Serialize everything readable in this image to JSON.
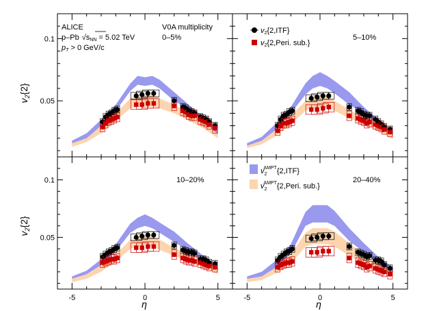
{
  "colors": {
    "itf_marker": "#000000",
    "peri_marker": "#cc0000",
    "ampt_itf_band": "#9999ee",
    "ampt_peri_band": "#fcd5b0"
  },
  "text": {
    "alice": "ALICE",
    "system_prefix": "p–Pb",
    "sqrt_s": "√s",
    "nn_sub": "NN",
    "energy": " = 5.02 TeV",
    "pt_p": "p",
    "pt_t": "T",
    "pt_rest": " > 0 GeV/c",
    "v0a": "V0A multiplicity",
    "ylabel_v": "v",
    "ylabel_sub": "2",
    "ylabel_rest": "{2}",
    "xlabel": "η"
  },
  "legends": {
    "itf_v": "v",
    "itf_sub": "2",
    "itf_rest": "{2,ITF}",
    "peri_v": "v",
    "peri_sub": "2",
    "peri_rest": "{2,Peri. sub.}",
    "ampt_itf_v": "v",
    "ampt_itf_sub": "2",
    "ampt_sup": "AMPT",
    "ampt_itf_rest": "{2,ITF}",
    "ampt_peri_v": "v",
    "ampt_peri_sub": "2",
    "ampt_peri_rest": "{2,Peri. sub.}"
  },
  "chart_data": {
    "type": "scatter",
    "title": "",
    "xlabel": "η",
    "ylabel": "v2{2}",
    "xlim": [
      -6.0,
      6.0
    ],
    "ylim": [
      0.005,
      0.12
    ],
    "x_ticks": [
      -5,
      0,
      5
    ],
    "y_ticks": [
      0.05,
      0.1
    ],
    "panels": [
      {
        "label": "0–5%",
        "eta": [
          -2.9,
          -2.7,
          -2.5,
          -2.3,
          -2.1,
          -1.9,
          -0.6,
          -0.2,
          0.2,
          0.6,
          2.0,
          2.6,
          2.8,
          3.0,
          3.2,
          3.4,
          3.8,
          4.0,
          4.2,
          4.4,
          4.8
        ],
        "itf": [
          0.033,
          0.037,
          0.039,
          0.04,
          0.042,
          0.043,
          0.054,
          0.055,
          0.056,
          0.056,
          0.05,
          0.045,
          0.044,
          0.042,
          0.041,
          0.04,
          0.037,
          0.036,
          0.035,
          0.033,
          0.03
        ],
        "peri": [
          0.029,
          0.032,
          0.034,
          0.035,
          0.036,
          0.037,
          0.047,
          0.047,
          0.048,
          0.048,
          0.046,
          0.042,
          0.041,
          0.039,
          0.038,
          0.038,
          0.035,
          0.034,
          0.033,
          0.031,
          0.028
        ],
        "ampt_eta": [
          -5,
          -4,
          -3,
          -2,
          -1,
          -0.5,
          0,
          0.5,
          1,
          2,
          3,
          4,
          5
        ],
        "ampt_itf_low": [
          0.016,
          0.02,
          0.03,
          0.042,
          0.058,
          0.063,
          0.062,
          0.063,
          0.06,
          0.05,
          0.043,
          0.034,
          0.023
        ],
        "ampt_itf_high": [
          0.018,
          0.024,
          0.035,
          0.047,
          0.064,
          0.07,
          0.069,
          0.07,
          0.067,
          0.057,
          0.047,
          0.037,
          0.026
        ],
        "ampt_peri_low": [
          0.013,
          0.017,
          0.024,
          0.034,
          0.044,
          0.045,
          0.045,
          0.045,
          0.044,
          0.04,
          0.034,
          0.028,
          0.02
        ],
        "ampt_peri_high": [
          0.016,
          0.022,
          0.032,
          0.04,
          0.052,
          0.055,
          0.055,
          0.055,
          0.052,
          0.047,
          0.04,
          0.033,
          0.025
        ]
      },
      {
        "label": "5–10%",
        "eta": [
          -2.9,
          -2.7,
          -2.5,
          -2.3,
          -2.1,
          -1.9,
          -0.6,
          -0.2,
          0.2,
          0.6,
          2.0,
          2.6,
          2.8,
          3.0,
          3.2,
          3.4,
          3.8,
          4.0,
          4.2,
          4.4,
          4.8
        ],
        "itf": [
          0.03,
          0.035,
          0.038,
          0.039,
          0.041,
          0.042,
          0.052,
          0.053,
          0.054,
          0.054,
          0.045,
          0.042,
          0.041,
          0.039,
          0.038,
          0.038,
          0.035,
          0.033,
          0.031,
          0.029,
          0.027
        ],
        "peri": [
          0.026,
          0.03,
          0.032,
          0.032,
          0.033,
          0.034,
          0.043,
          0.043,
          0.044,
          0.045,
          0.038,
          0.036,
          0.035,
          0.034,
          0.032,
          0.033,
          0.031,
          0.03,
          0.029,
          0.027,
          0.025
        ],
        "ampt_eta": [
          -5,
          -4,
          -3,
          -2,
          -1,
          -0.5,
          0,
          0.5,
          1,
          2,
          3,
          4,
          5
        ],
        "ampt_itf_low": [
          0.014,
          0.018,
          0.027,
          0.04,
          0.055,
          0.06,
          0.062,
          0.06,
          0.056,
          0.047,
          0.04,
          0.031,
          0.022
        ],
        "ampt_itf_high": [
          0.016,
          0.021,
          0.032,
          0.045,
          0.064,
          0.07,
          0.073,
          0.07,
          0.066,
          0.057,
          0.045,
          0.035,
          0.025
        ],
        "ampt_peri_low": [
          0.012,
          0.015,
          0.022,
          0.031,
          0.042,
          0.044,
          0.045,
          0.044,
          0.042,
          0.036,
          0.031,
          0.026,
          0.019
        ],
        "ampt_peri_high": [
          0.016,
          0.02,
          0.028,
          0.038,
          0.05,
          0.054,
          0.055,
          0.054,
          0.05,
          0.043,
          0.036,
          0.03,
          0.023
        ]
      },
      {
        "label": "10–20%",
        "eta": [
          -2.9,
          -2.7,
          -2.5,
          -2.3,
          -2.1,
          -1.9,
          -0.6,
          -0.2,
          0.2,
          0.6,
          2.0,
          2.6,
          2.8,
          3.0,
          3.2,
          3.4,
          3.8,
          4.0,
          4.2,
          4.4,
          4.8
        ],
        "itf": [
          0.033,
          0.035,
          0.037,
          0.038,
          0.04,
          0.041,
          0.05,
          0.051,
          0.052,
          0.052,
          0.043,
          0.039,
          0.038,
          0.037,
          0.037,
          0.036,
          0.031,
          0.031,
          0.03,
          0.028,
          0.027
        ],
        "peri": [
          0.028,
          0.029,
          0.03,
          0.031,
          0.031,
          0.032,
          0.041,
          0.041,
          0.042,
          0.042,
          0.035,
          0.032,
          0.031,
          0.03,
          0.03,
          0.029,
          0.028,
          0.027,
          0.026,
          0.025,
          0.024
        ],
        "ampt_eta": [
          -5,
          -4,
          -3,
          -2,
          -1,
          -0.5,
          0,
          0.5,
          1,
          2,
          3,
          4,
          5
        ],
        "ampt_itf_low": [
          0.014,
          0.018,
          0.026,
          0.038,
          0.054,
          0.058,
          0.06,
          0.058,
          0.054,
          0.046,
          0.038,
          0.03,
          0.021
        ],
        "ampt_itf_high": [
          0.016,
          0.021,
          0.031,
          0.044,
          0.062,
          0.067,
          0.07,
          0.067,
          0.063,
          0.055,
          0.044,
          0.034,
          0.024
        ],
        "ampt_peri_low": [
          0.011,
          0.014,
          0.02,
          0.029,
          0.04,
          0.042,
          0.043,
          0.042,
          0.039,
          0.034,
          0.029,
          0.024,
          0.018
        ],
        "ampt_peri_high": [
          0.015,
          0.019,
          0.026,
          0.035,
          0.048,
          0.051,
          0.052,
          0.051,
          0.048,
          0.041,
          0.035,
          0.028,
          0.022
        ]
      },
      {
        "label": "20–40%",
        "eta": [
          -2.9,
          -2.7,
          -2.5,
          -2.3,
          -2.1,
          -1.9,
          -0.6,
          -0.2,
          0.2,
          0.6,
          2.0,
          2.6,
          2.8,
          3.0,
          3.2,
          3.4,
          3.8,
          4.0,
          4.2,
          4.4,
          4.8
        ],
        "itf": [
          0.03,
          0.033,
          0.035,
          0.037,
          0.038,
          0.04,
          0.049,
          0.05,
          0.051,
          0.051,
          0.042,
          0.037,
          0.036,
          0.035,
          0.033,
          0.034,
          0.03,
          0.03,
          0.029,
          0.026,
          0.023
        ],
        "peri": [
          0.024,
          0.026,
          0.027,
          0.028,
          0.028,
          0.029,
          0.037,
          0.037,
          0.038,
          0.038,
          0.032,
          0.028,
          0.027,
          0.026,
          0.024,
          0.025,
          0.023,
          0.022,
          0.021,
          0.02,
          0.018
        ],
        "ampt_eta": [
          -5,
          -4,
          -3,
          -2,
          -1,
          -0.5,
          0,
          0.5,
          1,
          2,
          3,
          4,
          5
        ],
        "ampt_itf_low": [
          0.014,
          0.016,
          0.024,
          0.036,
          0.06,
          0.063,
          0.063,
          0.063,
          0.06,
          0.047,
          0.037,
          0.027,
          0.02
        ],
        "ampt_itf_high": [
          0.016,
          0.02,
          0.03,
          0.044,
          0.072,
          0.078,
          0.078,
          0.078,
          0.073,
          0.058,
          0.045,
          0.033,
          0.024
        ],
        "ampt_peri_low": [
          0.011,
          0.013,
          0.019,
          0.027,
          0.042,
          0.044,
          0.044,
          0.044,
          0.042,
          0.034,
          0.027,
          0.021,
          0.016
        ],
        "ampt_peri_high": [
          0.014,
          0.017,
          0.025,
          0.035,
          0.054,
          0.058,
          0.058,
          0.058,
          0.055,
          0.045,
          0.035,
          0.027,
          0.021
        ]
      }
    ]
  }
}
